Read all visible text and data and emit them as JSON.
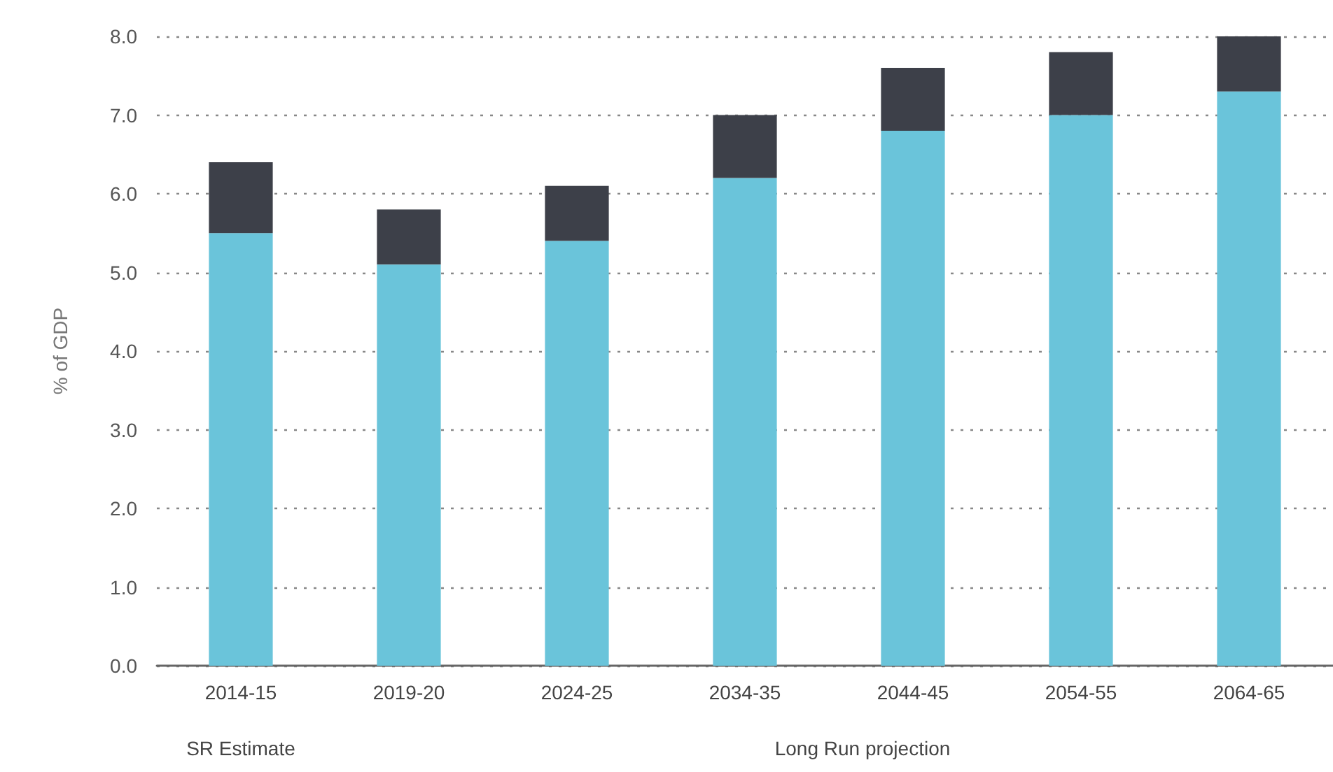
{
  "chart_data": {
    "type": "bar",
    "stacked": true,
    "ylabel": "% of GDP",
    "categories": [
      "2014-15",
      "2019-20",
      "2024-25",
      "2034-35",
      "2044-45",
      "2054-55",
      "2064-65"
    ],
    "series": [
      {
        "color": "#6ac4da",
        "values": [
          5.5,
          5.1,
          5.4,
          6.2,
          6.8,
          7.0,
          7.3
        ]
      },
      {
        "color": "#3d4049",
        "values": [
          0.9,
          0.7,
          0.7,
          0.8,
          0.8,
          0.8,
          0.7
        ]
      }
    ],
    "ylim": [
      0,
      8
    ],
    "yticks": [
      {
        "value": 0,
        "label": "0.0"
      },
      {
        "value": 1,
        "label": "1.0"
      },
      {
        "value": 2,
        "label": "2.0"
      },
      {
        "value": 3,
        "label": "3.0"
      },
      {
        "value": 4,
        "label": "4.0"
      },
      {
        "value": 5,
        "label": "5.0"
      },
      {
        "value": 6,
        "label": "6.0"
      },
      {
        "value": 7,
        "label": "7.0"
      },
      {
        "value": 8,
        "label": "8.0"
      }
    ],
    "grid": "y",
    "annotations": [
      "SR Estimate",
      "Long Run projection"
    ]
  }
}
